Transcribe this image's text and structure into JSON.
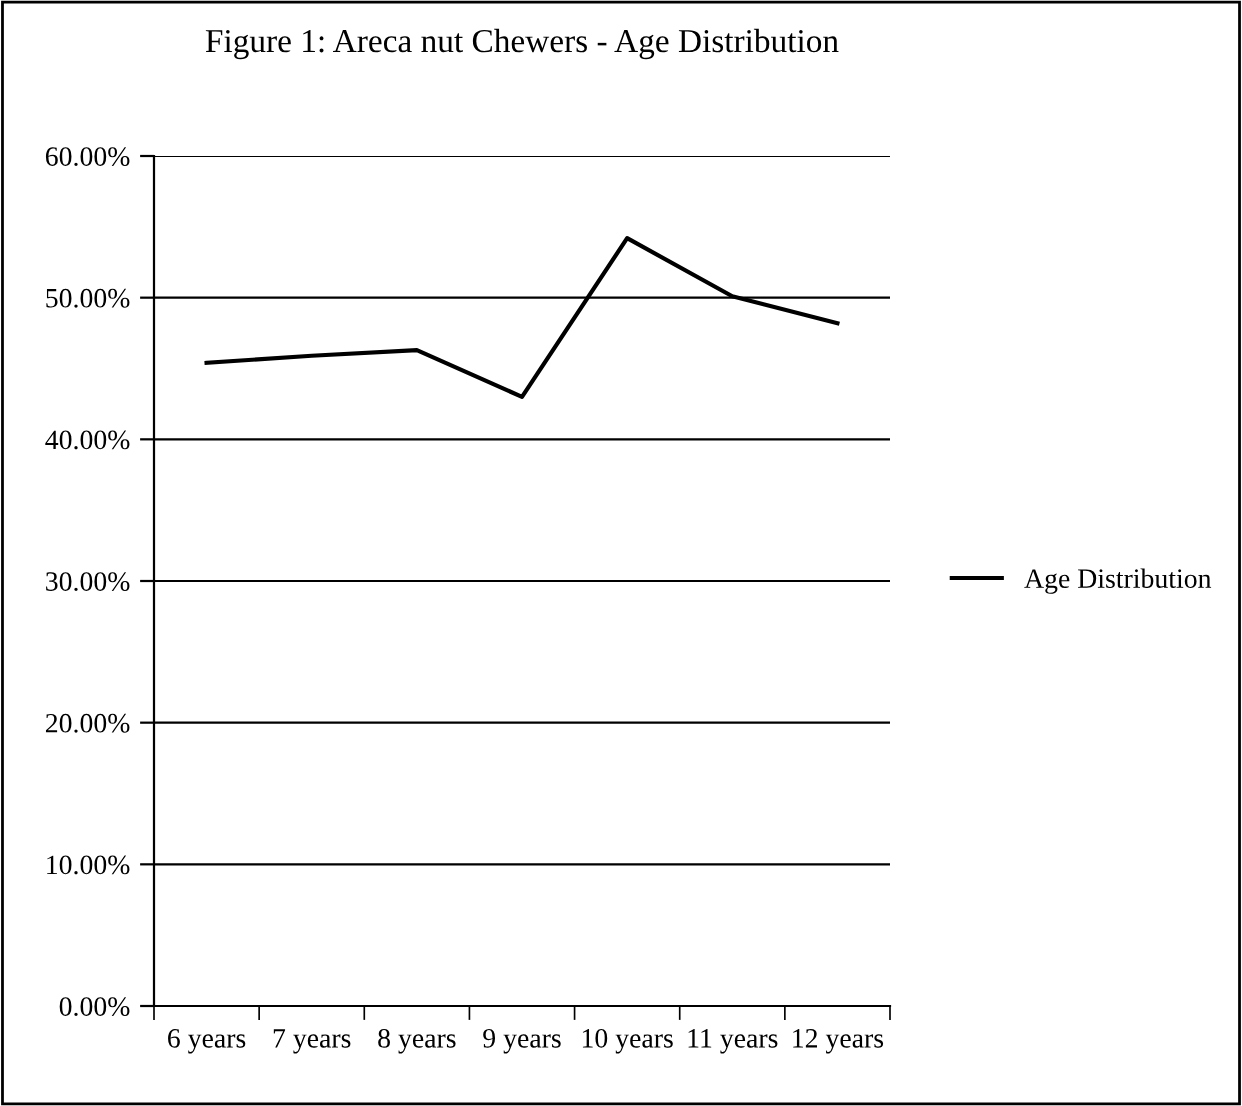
{
  "chart_data": {
    "type": "line",
    "title": "Figure 1: Areca nut Chewers - Age Distribution",
    "categories": [
      "6 years",
      "7 years",
      "8 years",
      "9 years",
      "10 years",
      "11 years",
      "12 years"
    ],
    "series": [
      {
        "name": "Age Distribution",
        "color": "#000000",
        "values": [
          45.4,
          45.9,
          46.3,
          43.0,
          54.2,
          50.1,
          48.2
        ]
      }
    ],
    "ylim": [
      0,
      60
    ],
    "yticks": [
      {
        "value": 0,
        "label": "0.00%"
      },
      {
        "value": 10,
        "label": "10.00%"
      },
      {
        "value": 20,
        "label": "20.00%"
      },
      {
        "value": 30,
        "label": "30.00%"
      },
      {
        "value": 40,
        "label": "40.00%"
      },
      {
        "value": 50,
        "label": "50.00%"
      },
      {
        "value": 60,
        "label": "60.00%"
      }
    ],
    "grid": "y",
    "legend": "right",
    "marker": "none",
    "line_style": "solid"
  }
}
